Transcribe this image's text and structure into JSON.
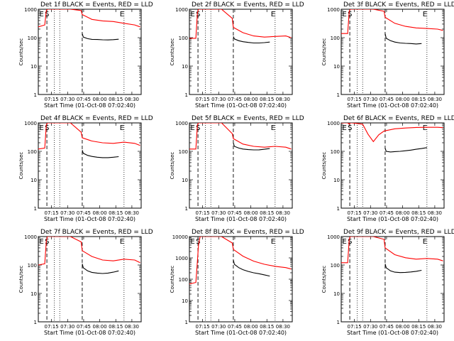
{
  "figure": {
    "title_suffix": "BLACK = Events, RED = LLD",
    "xlabel": "Start Time (01-Oct-08 07:02:40)",
    "ylabel": "Counts/sec"
  },
  "axes_common": {
    "type": "line",
    "x_unit": "minutes after 07:02:40",
    "xlim": [
      0,
      96
    ],
    "ylim": [
      1,
      1000
    ],
    "yscale": "log",
    "x_ticks": [
      {
        "value": 12.33,
        "label": "07:15"
      },
      {
        "value": 27.33,
        "label": "07:30"
      },
      {
        "value": 42.33,
        "label": "07:45"
      },
      {
        "value": 57.33,
        "label": "08:00"
      },
      {
        "value": 72.33,
        "label": "08:15"
      },
      {
        "value": 87.33,
        "label": "08:30"
      }
    ],
    "y_ticks": [
      {
        "value": 1,
        "label": "1"
      },
      {
        "value": 10,
        "label": "10"
      },
      {
        "value": 100,
        "label": "100"
      },
      {
        "value": 1000,
        "label": "1000"
      }
    ],
    "dotted_vlines": [
      15,
      20,
      80
    ],
    "dashed_vlines": [
      8,
      41
    ],
    "markers": [
      {
        "text": "E",
        "x": 1
      },
      {
        "text": "S",
        "x": 6
      },
      {
        "text": "E",
        "x": 76
      }
    ]
  },
  "chart_data": [
    {
      "type": "line",
      "title": "Det 1f BLACK = Events, RED = LLD",
      "ylim": [
        1,
        1000
      ],
      "series": [
        {
          "name": "LLD",
          "color": "#ff0000",
          "x": [
            0,
            6,
            7.5,
            8.5,
            10,
            20,
            30,
            40,
            41,
            50,
            60,
            70,
            80,
            90,
            95
          ],
          "y": [
            240,
            280,
            900,
            1000,
            1000,
            1000,
            1000,
            900,
            650,
            440,
            390,
            370,
            320,
            280,
            240
          ]
        },
        {
          "name": "Events",
          "color": "#000000",
          "x": [
            41,
            42,
            46,
            50,
            55,
            60,
            65,
            70,
            75
          ],
          "y": [
            140,
            105,
            92,
            87,
            86,
            84,
            83,
            85,
            88
          ]
        }
      ]
    },
    {
      "type": "line",
      "title": "Det 2f BLACK = Events, RED = LLD",
      "ylim": [
        1,
        1000
      ],
      "series": [
        {
          "name": "LLD",
          "color": "#ff0000",
          "x": [
            0,
            6,
            7.5,
            8.5,
            10,
            20,
            30,
            40,
            41,
            50,
            60,
            70,
            80,
            90,
            95
          ],
          "y": [
            95,
            95,
            750,
            1000,
            1000,
            1000,
            1000,
            480,
            230,
            150,
            115,
            105,
            110,
            115,
            100
          ]
        },
        {
          "name": "Events",
          "color": "#000000",
          "x": [
            41,
            42,
            46,
            50,
            55,
            60,
            65,
            70,
            75
          ],
          "y": [
            110,
            90,
            78,
            72,
            68,
            65,
            65,
            67,
            70
          ]
        }
      ]
    },
    {
      "type": "line",
      "title": "Det 3f BLACK = Events, RED = LLD",
      "ylim": [
        1,
        1000
      ],
      "series": [
        {
          "name": "LLD",
          "color": "#ff0000",
          "x": [
            0,
            6,
            7.5,
            8.5,
            10,
            20,
            30,
            40,
            41,
            50,
            60,
            70,
            80,
            90,
            95
          ],
          "y": [
            140,
            140,
            850,
            1000,
            1000,
            1000,
            1000,
            850,
            520,
            320,
            250,
            220,
            210,
            200,
            180
          ]
        },
        {
          "name": "Events",
          "color": "#000000",
          "x": [
            41,
            42,
            46,
            50,
            55,
            60,
            65,
            70,
            75
          ],
          "y": [
            140,
            95,
            78,
            70,
            65,
            63,
            62,
            60,
            62
          ]
        }
      ]
    },
    {
      "type": "line",
      "title": "Det 4f BLACK = Events, RED = LLD",
      "ylim": [
        1,
        1000
      ],
      "series": [
        {
          "name": "LLD",
          "color": "#ff0000",
          "x": [
            0,
            6,
            7.5,
            8.5,
            10,
            20,
            30,
            40,
            41,
            50,
            60,
            70,
            80,
            90,
            95
          ],
          "y": [
            120,
            130,
            850,
            1000,
            1000,
            1000,
            1000,
            470,
            300,
            230,
            200,
            190,
            210,
            190,
            160
          ]
        },
        {
          "name": "Events",
          "color": "#000000",
          "x": [
            41,
            42,
            46,
            50,
            55,
            60,
            65,
            70,
            75
          ],
          "y": [
            110,
            85,
            72,
            66,
            62,
            60,
            60,
            62,
            65
          ]
        }
      ]
    },
    {
      "type": "line",
      "title": "Det 5f BLACK = Events, RED = LLD",
      "ylim": [
        1,
        1000
      ],
      "series": [
        {
          "name": "LLD",
          "color": "#ff0000",
          "x": [
            0,
            6,
            7.5,
            8.5,
            10,
            20,
            30,
            40,
            41,
            50,
            60,
            70,
            80,
            90,
            95
          ],
          "y": [
            120,
            120,
            850,
            1000,
            1000,
            1000,
            1000,
            420,
            280,
            180,
            150,
            140,
            150,
            140,
            120
          ]
        },
        {
          "name": "Events",
          "color": "#000000",
          "x": [
            41,
            42,
            46,
            50,
            55,
            60,
            65,
            70,
            75
          ],
          "y": [
            200,
            150,
            130,
            120,
            115,
            112,
            113,
            118,
            125
          ]
        }
      ]
    },
    {
      "type": "line",
      "title": "Det 6f BLACK = Events, RED = LLD",
      "ylim": [
        1,
        1000
      ],
      "series": [
        {
          "name": "LLD",
          "color": "#ff0000",
          "x": [
            0,
            6,
            7.5,
            8.5,
            10,
            20,
            25,
            30,
            35,
            40,
            50,
            60,
            70,
            80,
            90,
            95
          ],
          "y": [
            1000,
            1000,
            900,
            1000,
            1000,
            900,
            400,
            220,
            380,
            520,
            620,
            660,
            690,
            700,
            700,
            680
          ]
        },
        {
          "name": "Events",
          "color": "#000000",
          "x": [
            41,
            42,
            46,
            50,
            55,
            60,
            65,
            70,
            75,
            80
          ],
          "y": [
            130,
            100,
            95,
            98,
            100,
            105,
            110,
            118,
            125,
            135
          ]
        }
      ]
    },
    {
      "type": "line",
      "title": "Det 7f BLACK = Events, RED = LLD",
      "ylim": [
        1,
        1000
      ],
      "series": [
        {
          "name": "LLD",
          "color": "#ff0000",
          "x": [
            0,
            6,
            7.5,
            8.5,
            10,
            20,
            30,
            40,
            41,
            50,
            60,
            70,
            80,
            90,
            95
          ],
          "y": [
            100,
            110,
            700,
            1000,
            1000,
            1000,
            1000,
            650,
            320,
            200,
            150,
            140,
            160,
            150,
            120
          ]
        },
        {
          "name": "Events",
          "color": "#000000",
          "x": [
            41,
            42,
            46,
            50,
            55,
            60,
            65,
            70,
            75
          ],
          "y": [
            110,
            80,
            62,
            55,
            52,
            50,
            52,
            56,
            62
          ]
        }
      ]
    },
    {
      "type": "line",
      "title": "Det 8f BLACK = Events, RED = LLD",
      "ylim": [
        1,
        10000
      ],
      "series": [
        {
          "name": "LLD",
          "color": "#ff0000",
          "x": [
            0,
            6,
            7.5,
            8.5,
            10,
            20,
            30,
            40,
            41,
            50,
            60,
            70,
            80,
            90,
            95
          ],
          "y": [
            60,
            70,
            700,
            4000,
            10000,
            10000,
            10000,
            5000,
            2500,
            1200,
            700,
            500,
            400,
            350,
            300
          ]
        },
        {
          "name": "Events",
          "color": "#000000",
          "x": [
            41,
            42,
            46,
            50,
            55,
            60,
            65,
            70,
            75
          ],
          "y": [
            800,
            500,
            350,
            280,
            230,
            200,
            180,
            160,
            140
          ]
        }
      ]
    },
    {
      "type": "line",
      "title": "Det 9f BLACK = Events, RED = LLD",
      "ylim": [
        1,
        1000
      ],
      "series": [
        {
          "name": "LLD",
          "color": "#ff0000",
          "x": [
            0,
            6,
            7.5,
            8.5,
            10,
            20,
            30,
            40,
            41,
            50,
            60,
            70,
            80,
            90,
            95
          ],
          "y": [
            120,
            120,
            800,
            1000,
            1000,
            1000,
            1000,
            800,
            400,
            230,
            180,
            160,
            170,
            160,
            140
          ]
        },
        {
          "name": "Events",
          "color": "#000000",
          "x": [
            41,
            42,
            46,
            50,
            55,
            60,
            65,
            70,
            75
          ],
          "y": [
            110,
            80,
            62,
            56,
            54,
            55,
            57,
            60,
            65
          ]
        }
      ]
    }
  ]
}
